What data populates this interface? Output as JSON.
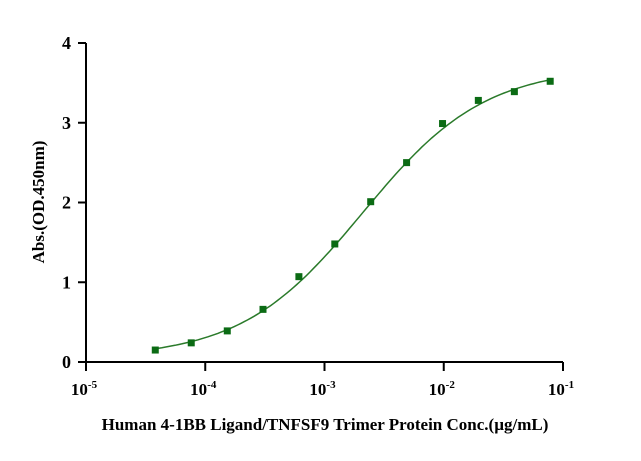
{
  "chart_data": {
    "type": "scatter",
    "title": "",
    "xlabel": "Human 4-1BB Ligand/TNFSF9 Trimer Protein Conc.(µg/mL)",
    "ylabel": "Abs.(OD.450nm)",
    "xscale": "log",
    "xlim": [
      1e-05,
      0.1
    ],
    "ylim": [
      0,
      4
    ],
    "x_ticks": [
      {
        "base": "10",
        "exp": "-5"
      },
      {
        "base": "10",
        "exp": "-4"
      },
      {
        "base": "10",
        "exp": "-3"
      },
      {
        "base": "10",
        "exp": "-2"
      },
      {
        "base": "10",
        "exp": "-1"
      }
    ],
    "y_ticks": [
      "0",
      "1",
      "2",
      "3",
      "4"
    ],
    "grid": false,
    "series": [
      {
        "name": "Human 4-1BB Ligand/TNFSF9 Trimer",
        "color": "#0b6b14",
        "marker": "square",
        "x": [
          3.81e-05,
          7.63e-05,
          0.000153,
          0.000305,
          0.00061,
          0.00122,
          0.00244,
          0.00488,
          0.00977,
          0.0195,
          0.0391,
          0.0781
        ],
        "y": [
          0.15,
          0.24,
          0.39,
          0.66,
          1.07,
          1.48,
          2.01,
          2.5,
          2.99,
          3.28,
          3.39,
          3.52
        ]
      }
    ],
    "fit": {
      "type": "4PL",
      "bottom": 0.05,
      "top": 3.7,
      "ec50": 0.0021,
      "hill": 0.85,
      "color": "#2a7a2a"
    }
  }
}
